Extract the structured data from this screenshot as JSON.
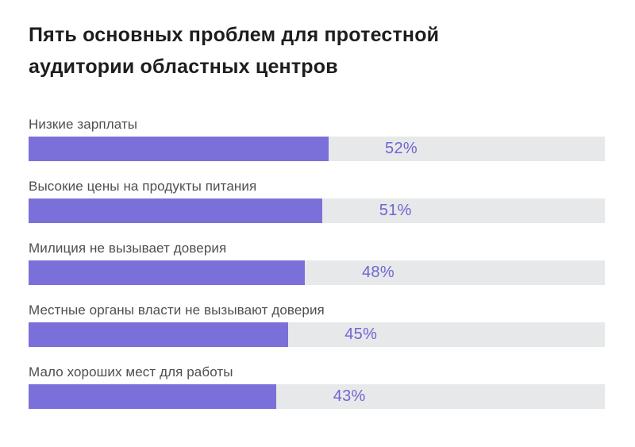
{
  "title_lines": [
    "Пять основных проблем для протестной",
    "аудитории областных центров"
  ],
  "chart_data": {
    "type": "bar",
    "orientation": "horizontal",
    "title": "Пять основных проблем для протестной аудитории областных центров",
    "categories": [
      "Низкие зарплаты",
      "Высокие цены на продукты питания",
      "Милиция не вызывает доверия",
      "Местные органы власти не вызывают доверия",
      "Мало хороших мест для работы"
    ],
    "values": [
      52,
      51,
      48,
      45,
      43
    ],
    "value_labels": [
      "52%",
      "51%",
      "48%",
      "45%",
      "43%"
    ],
    "unit": "%",
    "xlim": [
      0,
      100
    ],
    "grid": false,
    "legend": false,
    "axes_visible": false,
    "colors": {
      "bar_fill": "#7b70da",
      "bar_track": "#e7e8ea",
      "value_text": "#6f66d0",
      "category_text": "#4c4e52",
      "title_text": "#1d1d1f",
      "background": "#ffffff"
    }
  }
}
